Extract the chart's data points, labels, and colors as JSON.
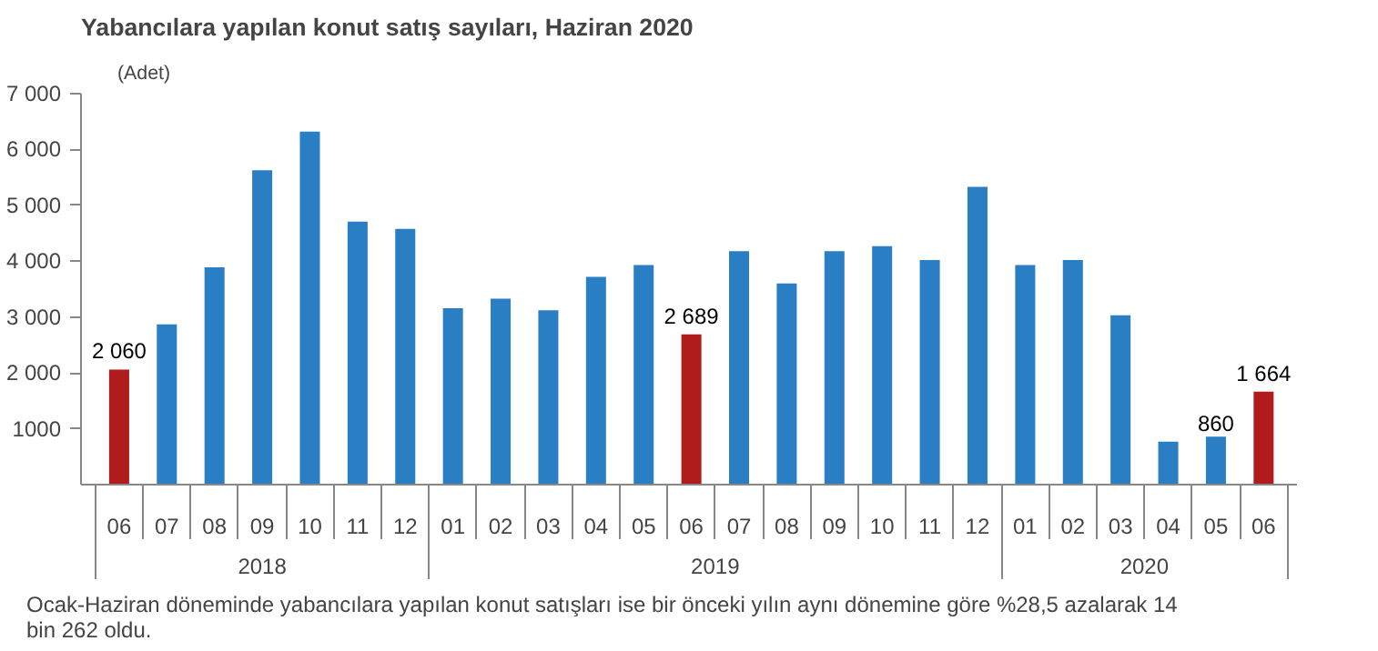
{
  "chart_data": {
    "type": "bar",
    "title": "Yabancılara yapılan konut satış sayıları, Haziran 2020",
    "ylabel": "(Adet)",
    "categories": [
      "06",
      "07",
      "08",
      "09",
      "10",
      "11",
      "12",
      "01",
      "02",
      "03",
      "04",
      "05",
      "06",
      "07",
      "08",
      "09",
      "10",
      "11",
      "12",
      "01",
      "02",
      "03",
      "04",
      "05",
      "06"
    ],
    "values": [
      2060,
      2870,
      3890,
      5630,
      6320,
      4710,
      4580,
      3160,
      3330,
      3120,
      3720,
      3930,
      2689,
      4180,
      3600,
      4180,
      4270,
      4020,
      5330,
      3930,
      4020,
      3030,
      770,
      860,
      1664
    ],
    "colors": [
      "#b01c1c",
      "#2a7fc4",
      "#2a7fc4",
      "#2a7fc4",
      "#2a7fc4",
      "#2a7fc4",
      "#2a7fc4",
      "#2a7fc4",
      "#2a7fc4",
      "#2a7fc4",
      "#2a7fc4",
      "#2a7fc4",
      "#b01c1c",
      "#2a7fc4",
      "#2a7fc4",
      "#2a7fc4",
      "#2a7fc4",
      "#2a7fc4",
      "#2a7fc4",
      "#2a7fc4",
      "#2a7fc4",
      "#2a7fc4",
      "#2a7fc4",
      "#2a7fc4",
      "#b01c1c"
    ],
    "value_labels": [
      "2 060",
      null,
      null,
      null,
      null,
      null,
      null,
      null,
      null,
      null,
      null,
      null,
      "2 689",
      null,
      null,
      null,
      null,
      null,
      null,
      null,
      null,
      null,
      null,
      "860",
      "1 664"
    ],
    "ylim": [
      0,
      7000
    ],
    "yticks": [
      {
        "value": 1000,
        "label": "1000"
      },
      {
        "value": 2000,
        "label": "2 000"
      },
      {
        "value": 3000,
        "label": "3 000"
      },
      {
        "value": 4000,
        "label": "4 000"
      },
      {
        "value": 5000,
        "label": "5 000"
      },
      {
        "value": 6000,
        "label": "6 000"
      },
      {
        "value": 7000,
        "label": "7 000"
      }
    ],
    "grid": false,
    "annotations": [
      "2018",
      "2019",
      "2020",
      "Ocak-Haziran döneminde yabancılara yapılan konut satışları ise bir önceki yılın aynı dönemine göre %28,5 azalarak 14 bin 262 oldu."
    ]
  }
}
